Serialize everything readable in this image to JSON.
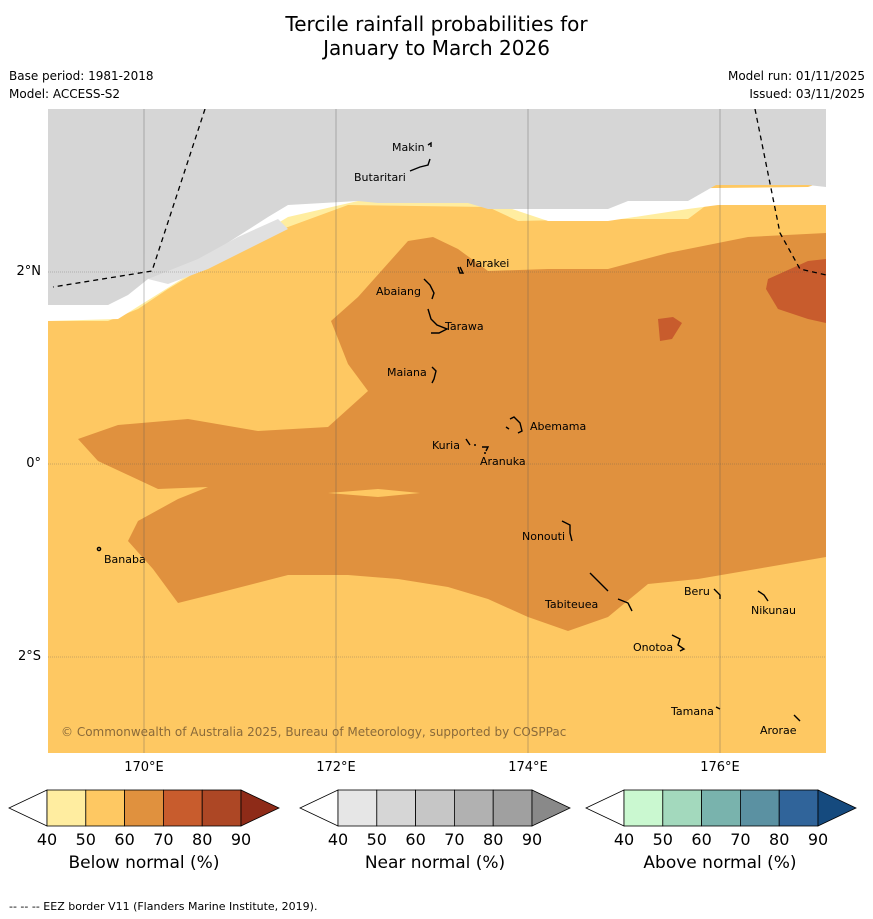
{
  "title": {
    "line1": "Tercile rainfall probabilities for",
    "line2": "January to March 2026"
  },
  "meta": {
    "base_period": "Base period: 1981-2018",
    "model": "Model: ACCESS-S2",
    "model_run": "Model run: 01/11/2025",
    "issued": "Issued: 03/11/2025"
  },
  "map": {
    "copyright": "© Commonwealth of Australia 2025, Bureau of Meteorology, supported by COSPPac",
    "lon_labels": [
      "170°E",
      "172°E",
      "174°E",
      "176°E"
    ],
    "lat_labels": [
      "2°N",
      "0°",
      "2°S"
    ],
    "islands": [
      "Makin",
      "Butaritari",
      "Marakei",
      "Abaiang",
      "Tarawa",
      "Maiana",
      "Abemama",
      "Kuria",
      "Aranuka",
      "Nonouti",
      "Banaba",
      "Beru",
      "Nikunau",
      "Tabiteuea",
      "Onotoa",
      "Tamana",
      "Arorae"
    ]
  },
  "colorbars": [
    {
      "label": "Below normal (%)",
      "ticks": [
        "40",
        "50",
        "60",
        "70",
        "80",
        "90"
      ],
      "colors": [
        "#ffffff",
        "#ffeda0",
        "#fec862",
        "#e0913e",
        "#c85c2d",
        "#ad4725",
        "#8e2b18"
      ]
    },
    {
      "label": "Near normal (%)",
      "ticks": [
        "40",
        "50",
        "60",
        "70",
        "80",
        "90"
      ],
      "colors": [
        "#ffffff",
        "#e6e6e6",
        "#d6d6d6",
        "#c6c6c6",
        "#b1b1b1",
        "#a0a0a0",
        "#898989"
      ]
    },
    {
      "label": "Above normal (%)",
      "ticks": [
        "40",
        "50",
        "60",
        "70",
        "80",
        "90"
      ],
      "colors": [
        "#ffffff",
        "#caf8d0",
        "#a3d9bd",
        "#79b3ad",
        "#5b91a2",
        "#30649a",
        "#154a7e"
      ]
    }
  ],
  "footer": "--  --  -- EEZ border V11 (Flanders Marine Institute, 2019)."
}
